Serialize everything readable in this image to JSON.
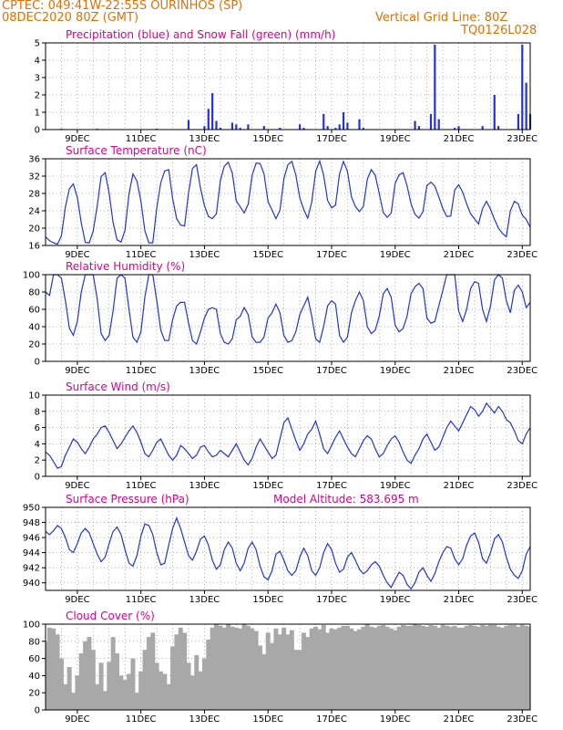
{
  "header": {
    "line1": "CPTEC:  049:41W-22:55S   OURINHOS (SP)",
    "line2": "08DEC2020 80Z (GMT)",
    "grid_note": "Vertical Grid Line: 80Z",
    "run_code": "TQ0126L028"
  },
  "colors": {
    "frame": "#000000",
    "grid": "#9a9a9a",
    "series": "#2233dd",
    "snow": "#22aa22",
    "cloud": "#a8a8a8",
    "title": "#dd0088",
    "header": "#e07000"
  },
  "x_axis": {
    "tick_labels": [
      "9DEC",
      "11DEC",
      "13DEC",
      "15DEC",
      "17DEC",
      "19DEC",
      "21DEC",
      "23DEC"
    ],
    "note": "time axis 08DEC to 23DEC, one sample every 3 hours"
  },
  "chart_data": [
    {
      "type": "bar",
      "title": "Precipitation (blue) and Snow Fall (green) (mm/h)",
      "ylim": [
        0,
        5
      ],
      "yticks": [
        "0",
        "1",
        "2",
        "3",
        "4",
        "5"
      ],
      "hours": [
        0,
        3,
        6,
        9,
        12,
        15,
        18,
        21,
        24,
        27,
        30,
        33,
        36,
        39,
        42,
        45,
        48,
        51,
        54,
        57,
        60,
        63,
        66,
        69,
        72,
        75,
        78,
        81,
        84,
        87,
        90,
        93,
        96,
        99,
        102,
        105,
        108,
        111,
        114,
        117,
        120,
        123,
        126,
        129,
        132,
        135,
        138,
        141,
        144,
        147,
        150,
        153,
        156,
        159,
        162,
        165,
        168,
        171,
        174,
        177,
        180,
        183,
        186,
        189,
        192,
        195,
        198,
        201,
        204,
        207,
        210,
        213,
        216,
        219,
        222,
        225,
        228,
        231,
        234,
        237,
        240,
        243,
        246,
        249,
        252,
        255,
        258,
        261,
        264,
        267,
        270,
        273,
        276,
        279,
        282,
        285,
        288,
        291,
        294,
        297,
        300,
        303,
        306,
        309,
        312,
        315,
        318,
        321,
        324,
        327,
        330,
        333,
        336,
        339,
        342,
        345,
        348,
        351,
        354,
        357,
        360,
        363,
        366
      ],
      "series": [
        {
          "name": "Precipitation (blue)",
          "values": [
            0,
            0,
            0,
            0,
            0.05,
            0,
            0,
            0,
            0,
            0,
            0,
            0,
            0,
            0.05,
            0,
            0,
            0,
            0,
            0,
            0,
            0,
            0,
            0,
            0,
            0,
            0,
            0,
            0,
            0.05,
            0,
            0,
            0,
            0,
            0,
            0,
            0,
            0.55,
            0,
            0,
            0,
            0.2,
            1.2,
            2.1,
            0.5,
            0.1,
            0,
            0,
            0.4,
            0.3,
            0.1,
            0,
            0.3,
            0,
            0,
            0,
            0.2,
            0,
            0,
            0,
            0.1,
            0,
            0,
            0,
            0,
            0.3,
            0.1,
            0,
            0,
            0,
            0,
            0.9,
            0.2,
            0,
            0.1,
            0.3,
            1.0,
            0.4,
            0,
            0,
            0.6,
            0.1,
            0,
            0,
            0,
            0,
            0,
            0,
            0,
            0,
            0,
            0,
            0,
            0,
            0.5,
            0.2,
            0,
            0,
            0.9,
            4.9,
            0.6,
            0,
            0,
            0,
            0.1,
            0.2,
            0,
            0,
            0,
            0,
            0,
            0.2,
            0,
            0,
            2.0,
            0.2,
            0,
            0,
            0,
            0,
            0.9,
            4.9,
            2.7,
            0.9
          ]
        },
        {
          "name": "Snow Fall (green)",
          "values": [
            0,
            0,
            0,
            0,
            0,
            0,
            0,
            0,
            0,
            0,
            0,
            0,
            0,
            0,
            0,
            0,
            0,
            0,
            0,
            0,
            0,
            0,
            0,
            0,
            0,
            0,
            0,
            0,
            0,
            0,
            0,
            0,
            0,
            0,
            0,
            0,
            0,
            0,
            0,
            0,
            0,
            0,
            0,
            0,
            0,
            0,
            0,
            0,
            0,
            0,
            0,
            0,
            0,
            0,
            0,
            0,
            0,
            0,
            0,
            0,
            0,
            0,
            0,
            0,
            0,
            0,
            0,
            0,
            0,
            0,
            0,
            0,
            0,
            0,
            0,
            0,
            0,
            0,
            0,
            0,
            0,
            0,
            0,
            0,
            0,
            0,
            0,
            0,
            0,
            0,
            0,
            0,
            0,
            0,
            0,
            0,
            0,
            0,
            0,
            0,
            0,
            0,
            0,
            0,
            0,
            0,
            0,
            0,
            0,
            0,
            0,
            0,
            0,
            0,
            0,
            0,
            0,
            0,
            0,
            0,
            0,
            0,
            0
          ]
        }
      ]
    },
    {
      "type": "line",
      "title": "Surface Temperature (nC)",
      "ylim": [
        16,
        36
      ],
      "yticks": [
        "16",
        "20",
        "24",
        "28",
        "32",
        "36"
      ],
      "series": [
        {
          "name": "",
          "values": [
            18.0,
            17.1,
            16.6,
            16.3,
            18.2,
            24.9,
            29.1,
            30.2,
            27.1,
            21.2,
            16.7,
            16.6,
            19.3,
            25.1,
            31.9,
            32.8,
            28.1,
            21.3,
            17.3,
            16.8,
            19.5,
            27.9,
            32.5,
            30.9,
            26.2,
            19.4,
            16.6,
            16.6,
            24.7,
            30.5,
            33.2,
            33.5,
            26.8,
            22.2,
            20.7,
            20.5,
            28.2,
            33.8,
            34.6,
            29.2,
            25.2,
            22.7,
            22.2,
            23.3,
            31.0,
            34.3,
            35.2,
            32.7,
            26.3,
            24.9,
            23.5,
            25.5,
            32.2,
            35.0,
            34.9,
            32.5,
            26.1,
            24.2,
            22.2,
            24.1,
            31.4,
            34.6,
            35.4,
            32.3,
            27.0,
            24.3,
            22.3,
            26.0,
            33.1,
            35.5,
            32.3,
            26.4,
            24.7,
            25.3,
            32.5,
            35.4,
            33.1,
            27.2,
            25.0,
            23.8,
            25.0,
            31.3,
            33.5,
            32.2,
            28.0,
            23.6,
            22.5,
            23.5,
            30.3,
            32.3,
            32.8,
            29.8,
            25.6,
            23.2,
            22.3,
            23.8,
            29.8,
            30.6,
            29.7,
            27.2,
            24.5,
            22.7,
            22.8,
            28.8,
            30.0,
            28.3,
            25.6,
            23.3,
            22.1,
            21.0,
            24.5,
            26.2,
            24.4,
            22.0,
            20.0,
            18.8,
            18.0,
            24.0,
            26.2,
            25.6,
            23.0,
            22.0,
            20.2
          ]
        }
      ]
    },
    {
      "type": "line",
      "title": "Relative Humidity (%)",
      "ylim": [
        0,
        100
      ],
      "yticks": [
        "0",
        "20",
        "40",
        "60",
        "80",
        "100"
      ],
      "series": [
        {
          "name": "",
          "values": [
            80,
            76,
            100,
            100,
            96,
            70,
            38,
            30,
            46,
            80,
            100,
            100,
            100,
            72,
            32,
            24,
            30,
            58,
            96,
            100,
            96,
            60,
            28,
            22,
            34,
            74,
            100,
            100,
            70,
            36,
            24,
            24,
            48,
            64,
            68,
            68,
            44,
            24,
            20,
            34,
            50,
            60,
            62,
            60,
            32,
            22,
            20,
            26,
            48,
            52,
            62,
            54,
            28,
            22,
            22,
            28,
            50,
            56,
            66,
            56,
            30,
            22,
            24,
            34,
            54,
            64,
            74,
            52,
            26,
            22,
            40,
            64,
            70,
            66,
            30,
            22,
            28,
            56,
            70,
            80,
            70,
            40,
            32,
            36,
            52,
            78,
            84,
            74,
            42,
            34,
            38,
            52,
            78,
            86,
            90,
            84,
            50,
            44,
            46,
            64,
            82,
            100,
            100,
            100,
            58,
            46,
            60,
            84,
            92,
            90,
            60,
            46,
            64,
            94,
            100,
            96,
            70,
            56,
            82,
            88,
            80,
            62,
            68
          ]
        }
      ]
    },
    {
      "type": "line",
      "title": "Surface Wind (m/s)",
      "ylim": [
        0,
        10
      ],
      "yticks": [
        "0",
        "2",
        "4",
        "6",
        "8",
        "10"
      ],
      "series": [
        {
          "name": "",
          "values": [
            3.0,
            2.6,
            1.8,
            1.0,
            1.2,
            2.6,
            3.6,
            4.6,
            4.2,
            3.4,
            2.8,
            3.6,
            4.6,
            5.2,
            6.0,
            6.2,
            5.4,
            4.4,
            3.4,
            4.0,
            4.8,
            5.6,
            6.2,
            5.4,
            4.2,
            2.8,
            2.4,
            3.2,
            4.2,
            4.6,
            3.6,
            2.6,
            2.0,
            2.6,
            3.8,
            3.4,
            2.8,
            2.2,
            2.6,
            3.6,
            3.8,
            3.0,
            2.4,
            2.6,
            3.2,
            2.8,
            2.4,
            3.2,
            4.0,
            3.0,
            2.0,
            1.4,
            2.2,
            3.6,
            4.6,
            3.8,
            3.0,
            2.2,
            2.6,
            4.6,
            6.6,
            7.2,
            5.8,
            4.4,
            3.2,
            4.0,
            5.2,
            5.8,
            6.8,
            5.2,
            3.4,
            2.8,
            3.8,
            4.8,
            5.6,
            4.6,
            3.6,
            2.8,
            2.4,
            3.4,
            4.4,
            5.0,
            4.6,
            3.4,
            2.4,
            2.8,
            3.8,
            4.6,
            5.0,
            4.2,
            3.0,
            2.0,
            1.6,
            2.6,
            3.4,
            4.6,
            5.2,
            4.2,
            3.2,
            3.6,
            4.8,
            6.0,
            6.8,
            6.2,
            5.6,
            6.6,
            7.6,
            8.6,
            8.2,
            7.4,
            8.0,
            9.0,
            8.4,
            7.8,
            8.6,
            8.0,
            7.0,
            6.6,
            5.6,
            4.4,
            4.0,
            5.2,
            6.0
          ]
        }
      ]
    },
    {
      "type": "line",
      "title": "Surface Pressure (hPa)",
      "annotation": "Model Altitude: 583.695 m",
      "ylim": [
        939,
        950
      ],
      "yticks": [
        "940",
        "942",
        "944",
        "946",
        "948",
        "950"
      ],
      "series": [
        {
          "name": "",
          "values": [
            946.8,
            946.4,
            946.9,
            947.6,
            947.2,
            946.0,
            944.4,
            944.0,
            945.2,
            946.6,
            947.2,
            946.6,
            945.2,
            943.8,
            942.8,
            943.4,
            945.2,
            946.8,
            947.4,
            946.4,
            944.4,
            942.6,
            942.2,
            943.6,
            946.2,
            947.8,
            947.6,
            946.4,
            944.0,
            942.4,
            942.6,
            945.0,
            947.2,
            948.6,
            947.2,
            945.4,
            943.6,
            943.0,
            944.2,
            945.8,
            946.2,
            945.0,
            943.0,
            941.8,
            942.4,
            944.4,
            945.4,
            944.6,
            942.6,
            941.6,
            942.6,
            944.6,
            945.4,
            944.4,
            942.2,
            940.8,
            940.4,
            941.6,
            943.8,
            944.2,
            943.0,
            941.6,
            941.0,
            941.6,
            943.4,
            944.6,
            943.6,
            941.6,
            941.0,
            942.0,
            944.0,
            945.2,
            944.4,
            942.6,
            941.4,
            941.8,
            943.4,
            944.0,
            943.0,
            941.8,
            941.2,
            941.6,
            942.4,
            942.8,
            942.2,
            941.0,
            940.0,
            939.4,
            940.4,
            941.4,
            941.0,
            939.8,
            939.2,
            940.0,
            941.4,
            942.0,
            941.0,
            940.2,
            941.2,
            942.8,
            944.0,
            944.8,
            944.6,
            943.2,
            942.4,
            943.2,
            945.0,
            946.2,
            946.6,
            945.4,
            943.2,
            942.6,
            944.0,
            945.8,
            946.4,
            945.4,
            943.4,
            941.8,
            941.0,
            940.6,
            941.6,
            943.8,
            944.8
          ]
        }
      ]
    },
    {
      "type": "area",
      "title": "Cloud Cover (%)",
      "ylim": [
        0,
        100
      ],
      "yticks": [
        "0",
        "20",
        "40",
        "60",
        "80",
        "100"
      ],
      "series": [
        {
          "name": "",
          "values": [
            80,
            96,
            95,
            88,
            60,
            30,
            50,
            20,
            40,
            66,
            80,
            85,
            70,
            30,
            55,
            22,
            56,
            85,
            66,
            40,
            35,
            42,
            60,
            20,
            45,
            70,
            85,
            90,
            55,
            45,
            42,
            30,
            74,
            88,
            96,
            90,
            55,
            40,
            64,
            45,
            60,
            82,
            96,
            100,
            98,
            96,
            100,
            97,
            96,
            95,
            100,
            98,
            95,
            92,
            75,
            65,
            90,
            78,
            95,
            88,
            96,
            88,
            93,
            70,
            70,
            90,
            85,
            95,
            97,
            94,
            99,
            90,
            95,
            94,
            96,
            98,
            98,
            95,
            92,
            94,
            97,
            100,
            97,
            96,
            98,
            99,
            97,
            95,
            93,
            97,
            99,
            98,
            98,
            100,
            99,
            98,
            97,
            99,
            98,
            96,
            99,
            98,
            97,
            98,
            96,
            96,
            98,
            99,
            98,
            97,
            99,
            98,
            99,
            99,
            97,
            96,
            98,
            99,
            99,
            97,
            99,
            98,
            97
          ]
        }
      ]
    }
  ]
}
